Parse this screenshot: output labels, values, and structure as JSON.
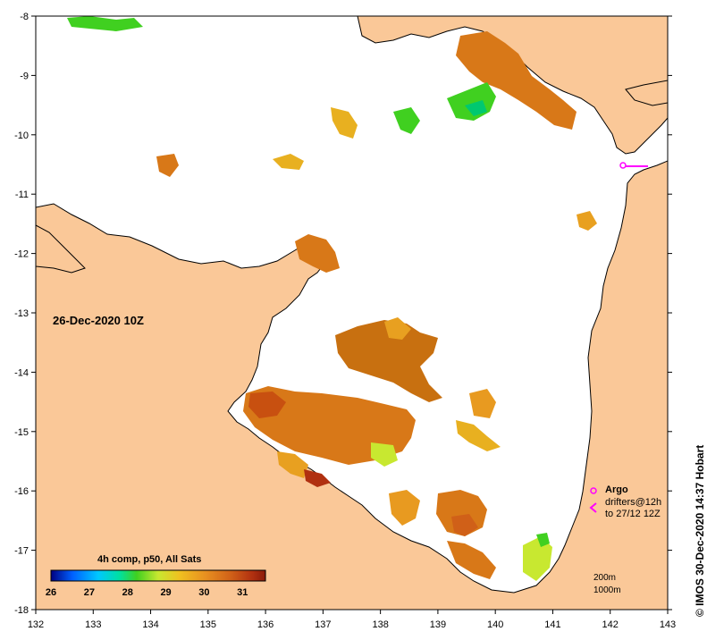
{
  "map": {
    "date_label": "26-Dec-2020 10Z",
    "credit": "IMOS 30-Dec-2020 14:37 Hobart",
    "copyright_symbol": "©",
    "x_ticks": [
      "132",
      "133",
      "134",
      "135",
      "136",
      "137",
      "138",
      "139",
      "140",
      "141",
      "142",
      "143"
    ],
    "y_ticks": [
      "-8",
      "-9",
      "-10",
      "-11",
      "-12",
      "-13",
      "-14",
      "-15",
      "-16",
      "-17",
      "-18"
    ],
    "lon_range": [
      132,
      143
    ],
    "lat_range": [
      -18,
      -8
    ],
    "land_color": "#fac898",
    "sea_color": "#ffffff"
  },
  "legend": {
    "title": "4h comp, p50, All Sats",
    "ticks": [
      "26",
      "27",
      "28",
      "29",
      "30",
      "31"
    ],
    "range": [
      26,
      31.6
    ],
    "colors": [
      "#000080",
      "#0060ff",
      "#00c8ff",
      "#00e0a0",
      "#40d020",
      "#c8e830",
      "#f0c020",
      "#e89020",
      "#d06018",
      "#b03010",
      "#8a1a0a"
    ],
    "argo_label": "Argo",
    "drifters_label": "drifters@12h",
    "drifters_date": "to 27/12 12Z",
    "depth_200": "200m",
    "depth_1000": "1000m",
    "argo_color": "#ff00ff"
  }
}
